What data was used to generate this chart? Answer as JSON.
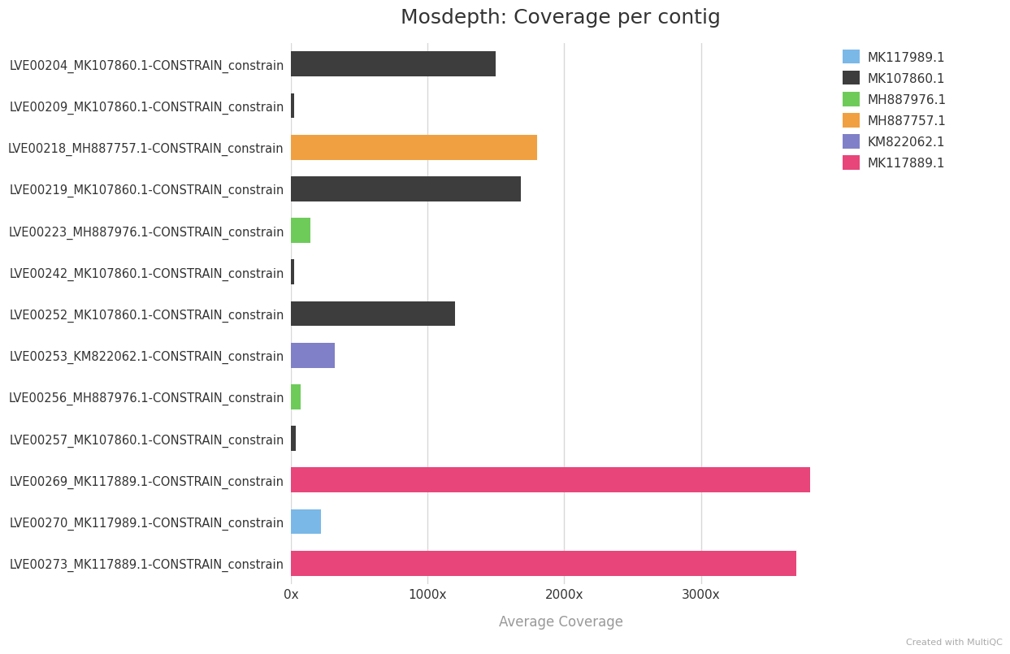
{
  "title": "Mosdepth: Coverage per contig",
  "xlabel": "Average Coverage",
  "categories": [
    "LVE00204_MK107860.1-CONSTRAIN_constrain",
    "LVE00209_MK107860.1-CONSTRAIN_constrain",
    "LVE00218_MH887757.1-CONSTRAIN_constrain",
    "LVE00219_MK107860.1-CONSTRAIN_constrain",
    "LVE00223_MH887976.1-CONSTRAIN_constrain",
    "LVE00242_MK107860.1-CONSTRAIN_constrain",
    "LVE00252_MK107860.1-CONSTRAIN_constrain",
    "LVE00253_KM822062.1-CONSTRAIN_constrain",
    "LVE00256_MH887976.1-CONSTRAIN_constrain",
    "LVE00257_MK107860.1-CONSTRAIN_constrain",
    "LVE00269_MK117889.1-CONSTRAIN_constrain",
    "LVE00270_MK117989.1-CONSTRAIN_constrain",
    "LVE00273_MK117889.1-CONSTRAIN_constrain"
  ],
  "values": [
    1500,
    25,
    1800,
    1680,
    140,
    25,
    1200,
    320,
    70,
    35,
    3800,
    220,
    3700
  ],
  "bar_colors": [
    "#3d3d3d",
    "#3d3d3d",
    "#f0a040",
    "#3d3d3d",
    "#6ecb5a",
    "#3d3d3d",
    "#3d3d3d",
    "#8080c8",
    "#6ecb5a",
    "#3d3d3d",
    "#e8457a",
    "#7ab8e8",
    "#e8457a"
  ],
  "legend_items": [
    {
      "label": "MK117989.1",
      "color": "#7ab8e8"
    },
    {
      "label": "MK107860.1",
      "color": "#3d3d3d"
    },
    {
      "label": "MH887976.1",
      "color": "#6ecb5a"
    },
    {
      "label": "MH887757.1",
      "color": "#f0a040"
    },
    {
      "label": "KM822062.1",
      "color": "#8080c8"
    },
    {
      "label": "MK117889.1",
      "color": "#e8457a"
    }
  ],
  "xticks": [
    0,
    1000,
    2000,
    3000
  ],
  "xtick_labels": [
    "0x",
    "1000x",
    "2000x",
    "3000x"
  ],
  "xlim": [
    0,
    3950
  ],
  "background_color": "#ffffff",
  "plot_bg_color": "#ffffff",
  "grid_color": "#d8d8d8",
  "title_fontsize": 18,
  "label_fontsize": 10.5,
  "tick_fontsize": 11,
  "xlabel_fontsize": 12,
  "bar_height": 0.6,
  "footer_text": "Created with MultiQC",
  "footer_color": "#aaaaaa",
  "footer_fontsize": 8
}
